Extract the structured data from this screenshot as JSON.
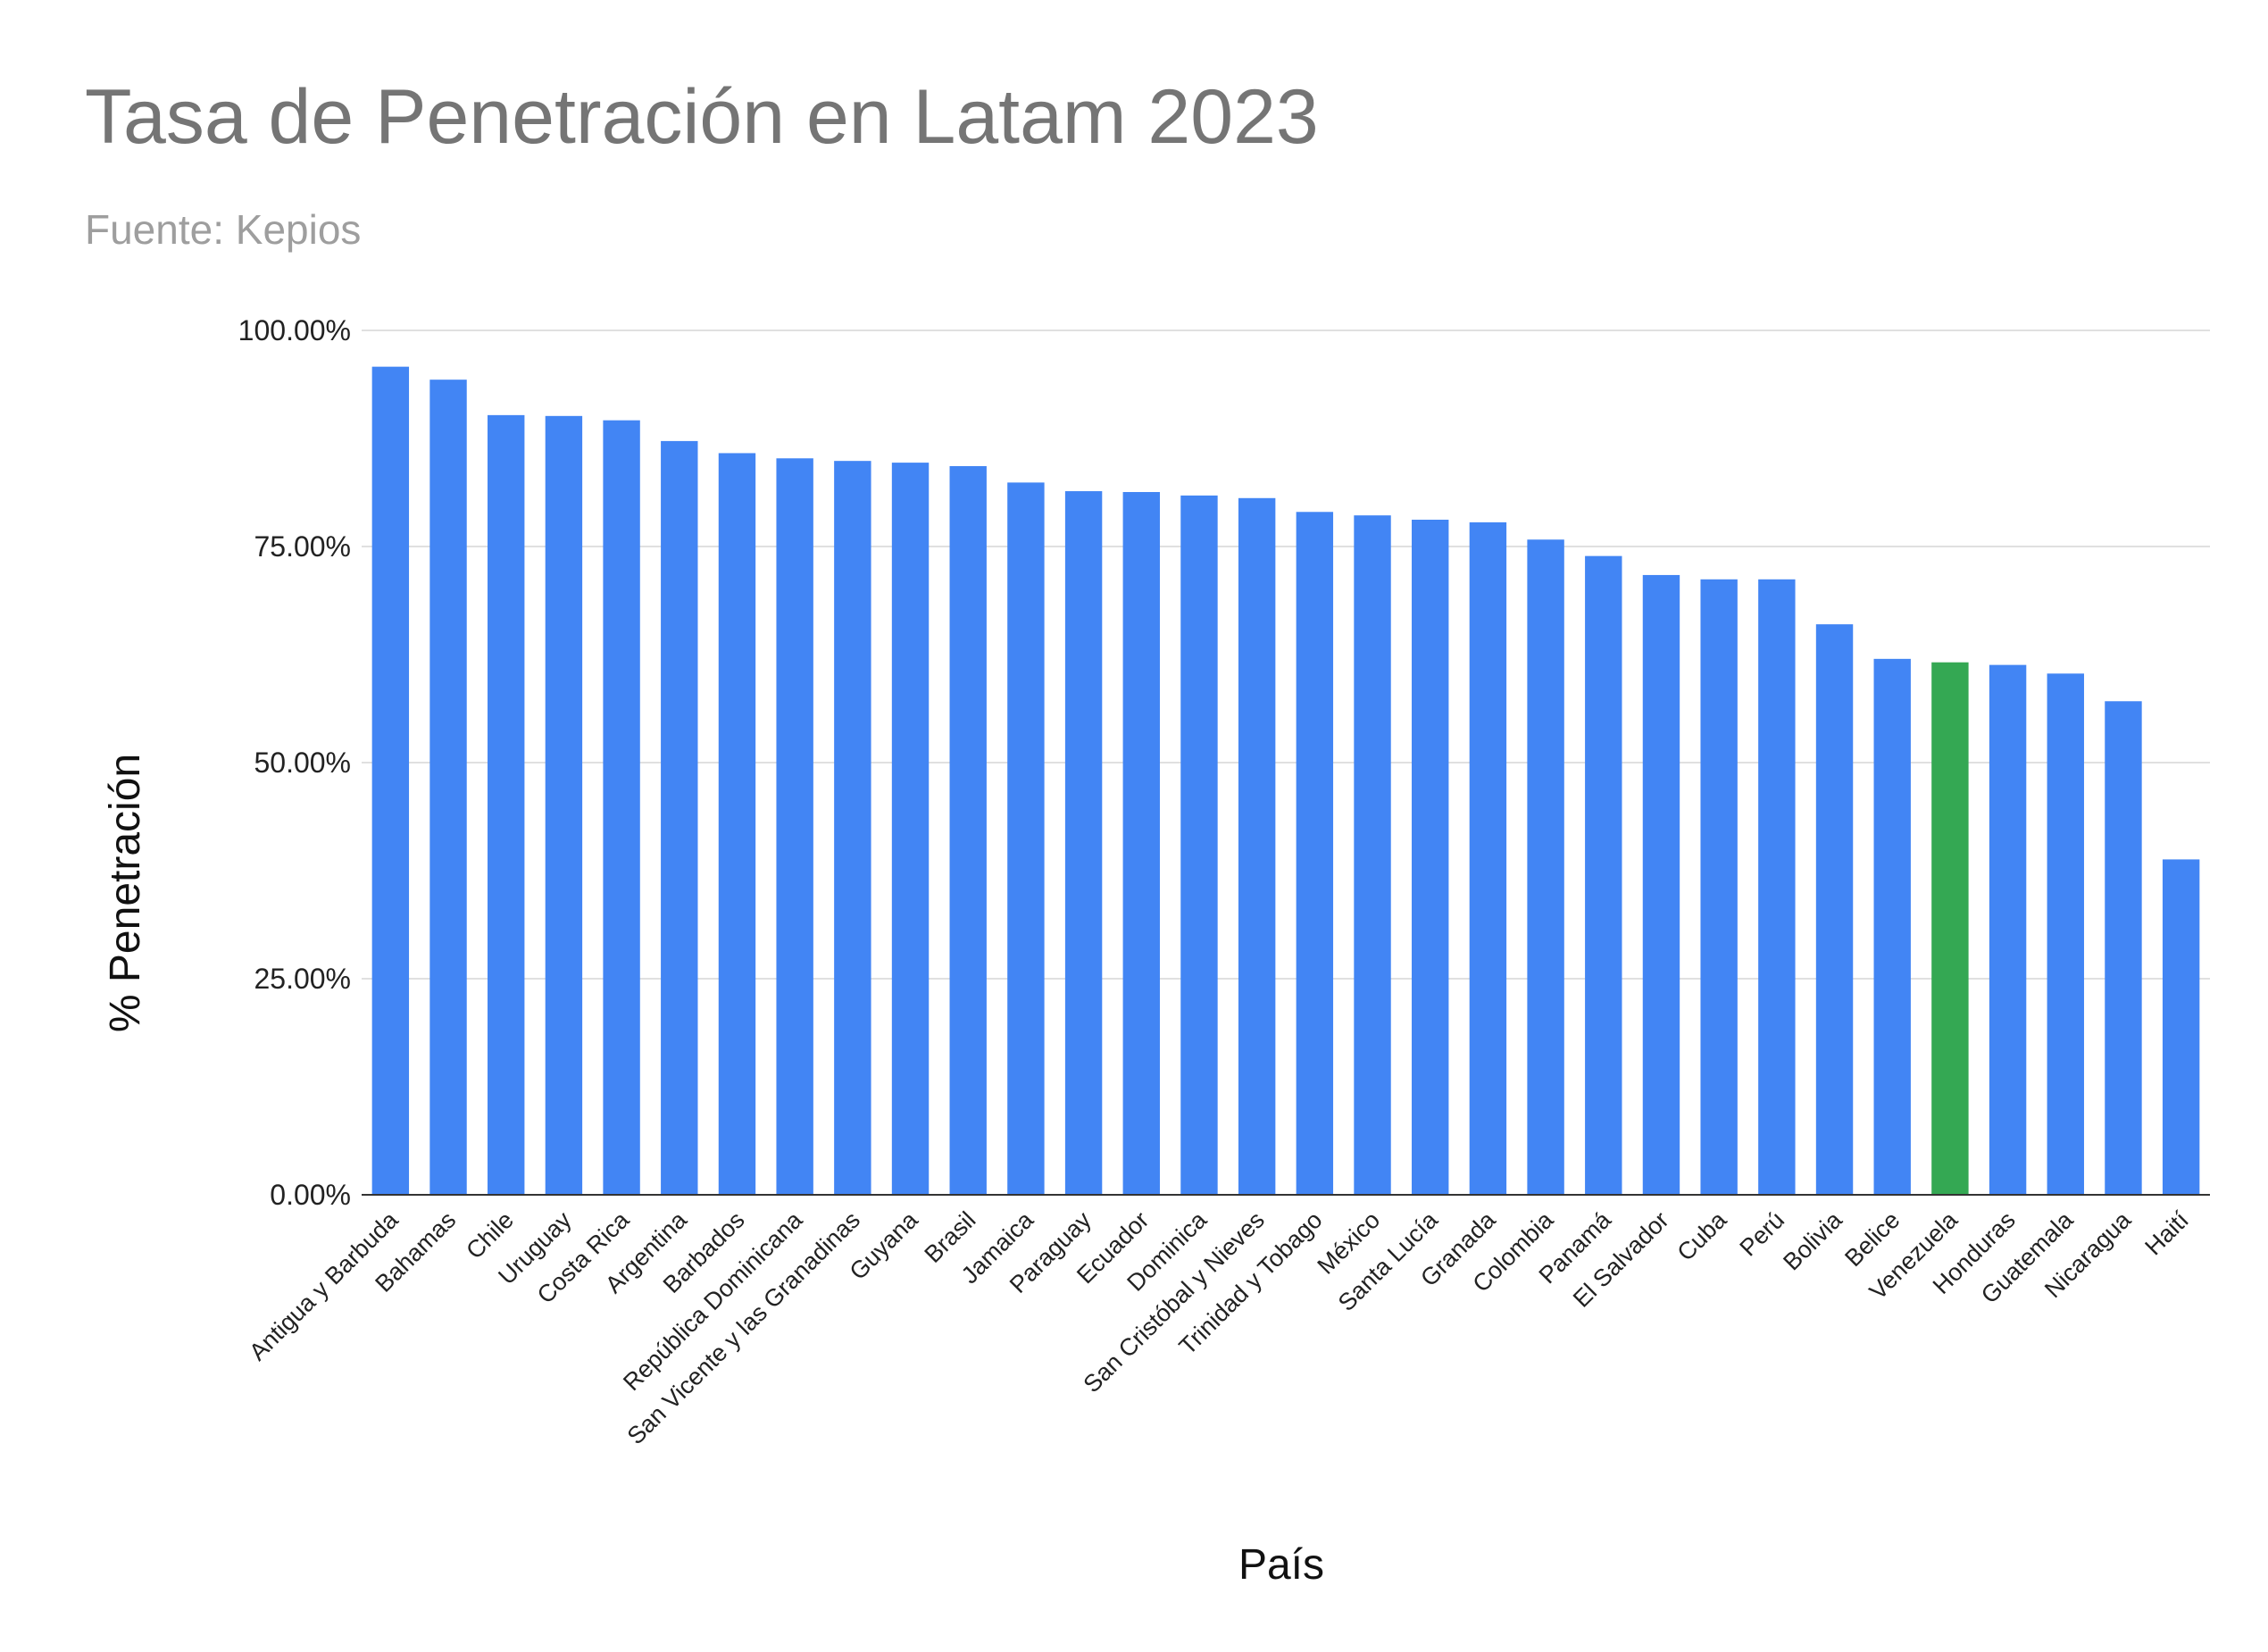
{
  "chart_data": {
    "type": "bar",
    "title": "Tasa de Penetración en Latam 2023",
    "subtitle": "Fuente: Kepios",
    "xlabel": "País",
    "ylabel": "% Penetración",
    "ylim": [
      0,
      100
    ],
    "yticks": [
      "0.00%",
      "25.00%",
      "50.00%",
      "75.00%",
      "100.00%"
    ],
    "ytick_values": [
      0,
      25,
      50,
      75,
      100
    ],
    "grid": true,
    "legend": "none",
    "colors": {
      "default": "#4285f4",
      "highlight": "#34a853",
      "grid": "#e0e0e0",
      "axis": "#333333"
    },
    "highlight_category": "Venezuela",
    "categories": [
      "Antigua y Barbuda",
      "Bahamas",
      "Chile",
      "Uruguay",
      "Costa Rica",
      "Argentina",
      "Barbados",
      "República Dominicana",
      "San Vicente y las Granadinas",
      "Guyana",
      "Brasil",
      "Jamaica",
      "Paraguay",
      "Ecuador",
      "Dominica",
      "San Cristóbal y Nieves",
      "Trinidad y Tobago",
      "México",
      "Santa Lucía",
      "Granada",
      "Colombia",
      "Panamá",
      "El Salvador",
      "Cuba",
      "Perú",
      "Bolivia",
      "Belice",
      "Venezuela",
      "Honduras",
      "Guatemala",
      "Nicaragua",
      "Haití"
    ],
    "values": [
      95.8,
      94.3,
      90.2,
      90.1,
      89.6,
      87.2,
      85.8,
      85.2,
      84.9,
      84.7,
      84.3,
      82.4,
      81.4,
      81.3,
      80.9,
      80.6,
      79.0,
      78.6,
      78.1,
      77.8,
      75.8,
      73.9,
      71.7,
      71.2,
      71.2,
      66.0,
      62.0,
      61.6,
      61.3,
      60.3,
      57.1,
      38.8
    ]
  }
}
